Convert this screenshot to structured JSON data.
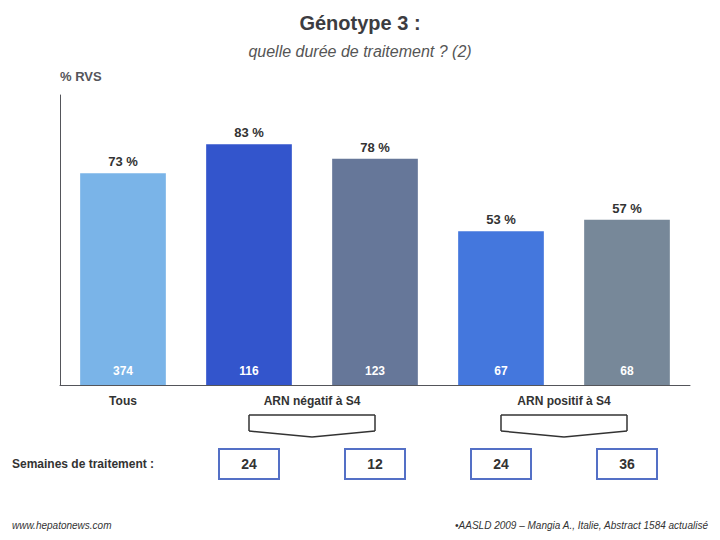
{
  "chart_data": {
    "type": "bar",
    "title": "Génotype 3 :",
    "subtitle": "quelle durée de traitement ? (2)",
    "ylabel": "% RVS",
    "categories": [
      null,
      null,
      null,
      null,
      null
    ],
    "values": [
      73,
      83,
      78,
      53,
      57
    ],
    "value_labels": [
      "73 %",
      "83 %",
      "78 %",
      "53 %",
      "57 %"
    ],
    "data_labels": true,
    "colors": [
      "#7ab4e8",
      "#3355cc",
      "#667799",
      "#4477dd",
      "#778899"
    ],
    "n": [
      374,
      116,
      123,
      67,
      68
    ],
    "groups": [
      {
        "label": "Tous",
        "size": 1
      },
      {
        "label": "ARN négatif à S4",
        "size": 2
      },
      {
        "label": "ARN positif à S4",
        "size": 2
      }
    ],
    "weeks_label": "Semaines de traitement :",
    "weeks": [
      null,
      24,
      12,
      24,
      36
    ],
    "annotations": [
      "www.hepatonews.com",
      "•AASLD 2009 – Mangia A., Italie, Abstract 1584 actualisé"
    ],
    "ylim": [
      0,
      100
    ],
    "grid": false,
    "tick_labels": false
  }
}
